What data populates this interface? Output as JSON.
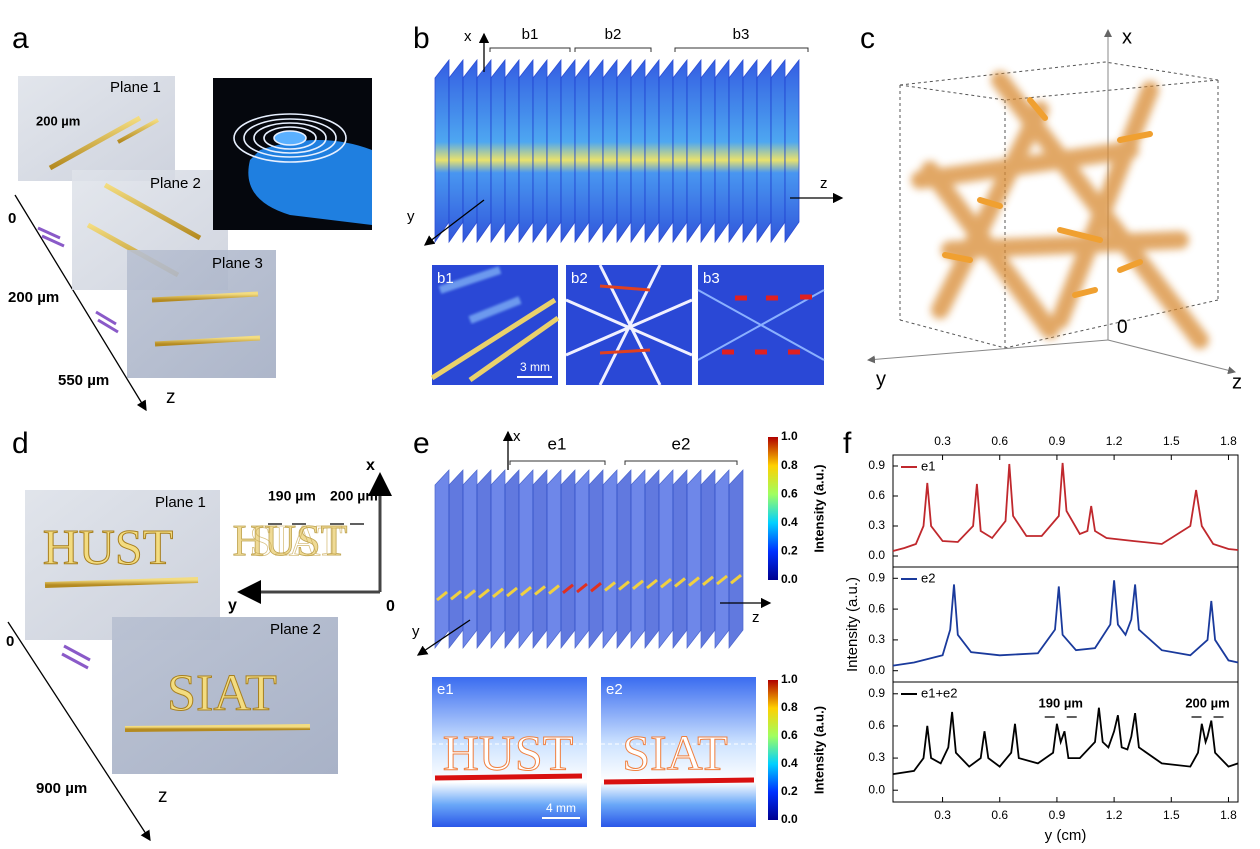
{
  "panels": {
    "a": {
      "label": "a",
      "planes": [
        "Plane 1",
        "Plane 2",
        "Plane 3"
      ],
      "scale": "200 µm",
      "axis": [
        "0",
        "200 µm",
        "550 µm"
      ],
      "axis_label": "z"
    },
    "b": {
      "label": "b",
      "axes": [
        "x",
        "y",
        "z"
      ],
      "groups": [
        "b1",
        "b2",
        "b3"
      ],
      "insets": [
        "b1",
        "b2",
        "b3"
      ],
      "scale": "3 mm"
    },
    "c": {
      "label": "c",
      "axes": [
        "x",
        "y",
        "z"
      ],
      "origin": "0"
    },
    "d": {
      "label": "d",
      "planes": [
        "Plane 1",
        "Plane 2"
      ],
      "words": [
        "HUST",
        "SIAT"
      ],
      "gaps": [
        "190 µm",
        "200 µm"
      ],
      "axes": [
        "x",
        "y",
        "0"
      ],
      "axis": [
        "0",
        "900 µm"
      ],
      "axis_label": "z"
    },
    "e": {
      "label": "e",
      "axes": [
        "x",
        "y",
        "z"
      ],
      "groups": [
        "e1",
        "e2"
      ],
      "insets": [
        "e1",
        "e2"
      ],
      "scale": "4 mm",
      "colorbar_ticks": [
        "1.0",
        "0.8",
        "0.6",
        "0.4",
        "0.2",
        "0.0"
      ],
      "colorbar_label": "Intensity (a.u.)"
    },
    "f": {
      "label": "f"
    }
  },
  "chart_data": [
    {
      "type": "line",
      "x2ticks": [
        0.3,
        0.6,
        0.9,
        1.2,
        1.5,
        1.8
      ],
      "xlim": [
        0.04,
        1.85
      ],
      "ylim": [
        -0.11,
        1.01
      ],
      "yticks": [
        {
          "value": 0,
          "label": "0.0"
        },
        0.3,
        0.6,
        0.9
      ],
      "series": [
        {
          "name": "e1",
          "color": "#c0282d",
          "x": [
            0.04,
            0.1,
            0.16,
            0.2,
            0.22,
            0.24,
            0.3,
            0.38,
            0.46,
            0.48,
            0.5,
            0.56,
            0.63,
            0.65,
            0.67,
            0.74,
            0.82,
            0.91,
            0.93,
            0.95,
            1.02,
            1.06,
            1.08,
            1.1,
            1.16,
            1.3,
            1.45,
            1.6,
            1.63,
            1.66,
            1.72,
            1.8,
            1.85
          ],
          "values": [
            0.05,
            0.08,
            0.12,
            0.3,
            0.73,
            0.3,
            0.15,
            0.14,
            0.3,
            0.72,
            0.25,
            0.18,
            0.35,
            0.92,
            0.4,
            0.2,
            0.2,
            0.4,
            0.93,
            0.45,
            0.22,
            0.25,
            0.5,
            0.25,
            0.18,
            0.15,
            0.12,
            0.3,
            0.66,
            0.3,
            0.12,
            0.07,
            0.06
          ]
        }
      ]
    },
    {
      "type": "line",
      "xlim": [
        0.04,
        1.85
      ],
      "ylim": [
        -0.11,
        1.01
      ],
      "ylabel": "Intensity (a.u.)",
      "yticks": [
        {
          "value": 0,
          "label": "0.0"
        },
        0.3,
        0.6,
        0.9
      ],
      "series": [
        {
          "name": "e2",
          "color": "#1a3a9c",
          "x": [
            0.04,
            0.15,
            0.3,
            0.34,
            0.36,
            0.38,
            0.45,
            0.6,
            0.8,
            0.89,
            0.91,
            0.93,
            1.0,
            1.1,
            1.18,
            1.2,
            1.22,
            1.26,
            1.29,
            1.31,
            1.33,
            1.45,
            1.6,
            1.69,
            1.71,
            1.73,
            1.8,
            1.85
          ],
          "values": [
            0.05,
            0.08,
            0.15,
            0.4,
            0.84,
            0.35,
            0.18,
            0.15,
            0.17,
            0.4,
            0.82,
            0.35,
            0.2,
            0.22,
            0.45,
            0.88,
            0.45,
            0.35,
            0.5,
            0.84,
            0.4,
            0.2,
            0.15,
            0.3,
            0.68,
            0.3,
            0.1,
            0.08
          ]
        }
      ]
    },
    {
      "type": "line",
      "xlim": [
        0.04,
        1.85
      ],
      "ylim": [
        -0.11,
        1.01
      ],
      "xlabel": "y (cm)",
      "xticks": [
        0.3,
        0.6,
        0.9,
        1.2,
        1.5,
        1.8
      ],
      "yticks": [
        {
          "value": 0,
          "label": "0.0"
        },
        0.3,
        0.6,
        0.9
      ],
      "annotations": [
        "190 µm",
        "200 µm"
      ],
      "series": [
        {
          "name": "e1+e2",
          "color": "#000000",
          "x": [
            0.04,
            0.15,
            0.2,
            0.22,
            0.24,
            0.29,
            0.33,
            0.35,
            0.37,
            0.44,
            0.5,
            0.52,
            0.54,
            0.6,
            0.66,
            0.68,
            0.7,
            0.8,
            0.88,
            0.9,
            0.92,
            0.94,
            0.96,
            1.02,
            1.1,
            1.12,
            1.14,
            1.17,
            1.2,
            1.22,
            1.24,
            1.27,
            1.29,
            1.31,
            1.33,
            1.45,
            1.6,
            1.64,
            1.66,
            1.68,
            1.69,
            1.71,
            1.73,
            1.8,
            1.85
          ],
          "values": [
            0.15,
            0.18,
            0.3,
            0.6,
            0.3,
            0.25,
            0.4,
            0.73,
            0.35,
            0.22,
            0.3,
            0.55,
            0.3,
            0.22,
            0.35,
            0.62,
            0.3,
            0.25,
            0.35,
            0.62,
            0.45,
            0.55,
            0.3,
            0.3,
            0.45,
            0.77,
            0.45,
            0.4,
            0.55,
            0.7,
            0.4,
            0.38,
            0.5,
            0.72,
            0.4,
            0.25,
            0.22,
            0.35,
            0.62,
            0.45,
            0.5,
            0.65,
            0.35,
            0.22,
            0.25
          ]
        }
      ]
    }
  ]
}
